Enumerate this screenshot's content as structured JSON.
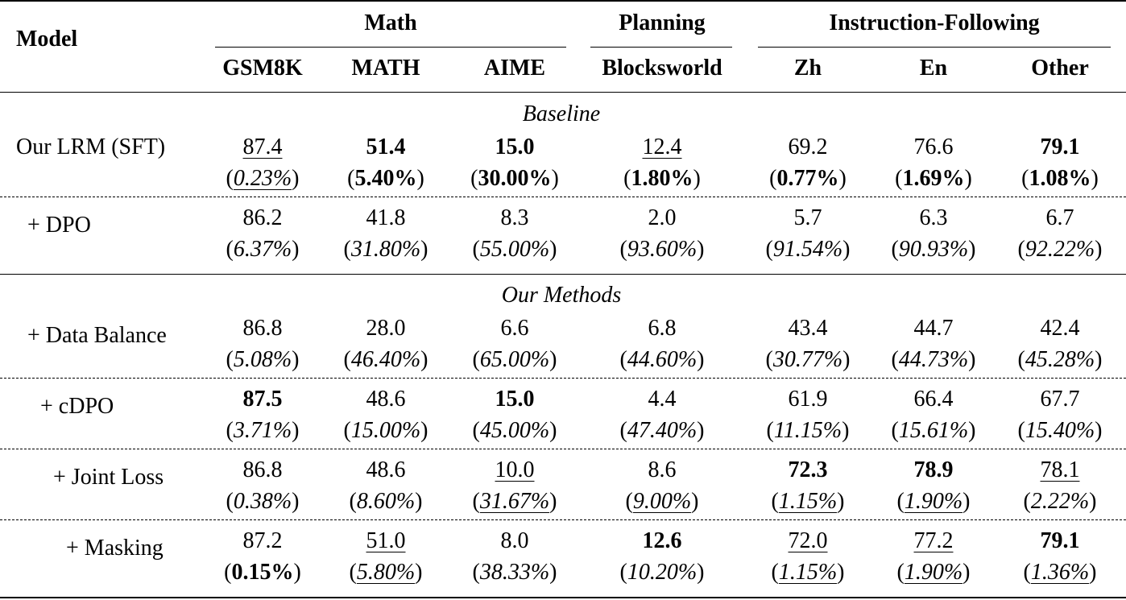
{
  "header": {
    "model_label": "Model",
    "groups": [
      {
        "label": "Math"
      },
      {
        "label": "Planning"
      },
      {
        "label": "Instruction-Following"
      }
    ],
    "columns": [
      "GSM8K",
      "MATH",
      "AIME",
      "Blocksworld",
      "Zh",
      "En",
      "Other"
    ]
  },
  "sections": [
    {
      "label": "Baseline"
    },
    {
      "label": "Our Methods"
    }
  ],
  "rows": [
    {
      "model": "Our LRM (SFT)",
      "values": [
        "87.4",
        "51.4",
        "15.0",
        "12.4",
        "69.2",
        "76.6",
        "79.1"
      ],
      "pcts": [
        "0.23%",
        "5.40%",
        "30.00%",
        "1.80%",
        "0.77%",
        "1.69%",
        "1.08%"
      ]
    },
    {
      "model": "+ DPO",
      "values": [
        "86.2",
        "41.8",
        "8.3",
        "2.0",
        "5.7",
        "6.3",
        "6.7"
      ],
      "pcts": [
        "6.37%",
        "31.80%",
        "55.00%",
        "93.60%",
        "91.54%",
        "90.93%",
        "92.22%"
      ]
    },
    {
      "model": "+ Data Balance",
      "values": [
        "86.8",
        "28.0",
        "6.6",
        "6.8",
        "43.4",
        "44.7",
        "42.4"
      ],
      "pcts": [
        "5.08%",
        "46.40%",
        "65.00%",
        "44.60%",
        "30.77%",
        "44.73%",
        "45.28%"
      ]
    },
    {
      "model": "+ cDPO",
      "values": [
        "87.5",
        "48.6",
        "15.0",
        "4.4",
        "61.9",
        "66.4",
        "67.7"
      ],
      "pcts": [
        "3.71%",
        "15.00%",
        "45.00%",
        "47.40%",
        "11.15%",
        "15.61%",
        "15.40%"
      ]
    },
    {
      "model": "+ Joint Loss",
      "values": [
        "86.8",
        "48.6",
        "10.0",
        "8.6",
        "72.3",
        "78.9",
        "78.1"
      ],
      "pcts": [
        "0.38%",
        "8.60%",
        "31.67%",
        "9.00%",
        "1.15%",
        "1.90%",
        "2.22%"
      ]
    },
    {
      "model": "+ Masking",
      "values": [
        "87.2",
        "51.0",
        "8.0",
        "12.6",
        "72.0",
        "77.2",
        "79.1"
      ],
      "pcts": [
        "0.15%",
        "5.80%",
        "38.33%",
        "10.20%",
        "1.15%",
        "1.90%",
        "1.36%"
      ]
    }
  ]
}
